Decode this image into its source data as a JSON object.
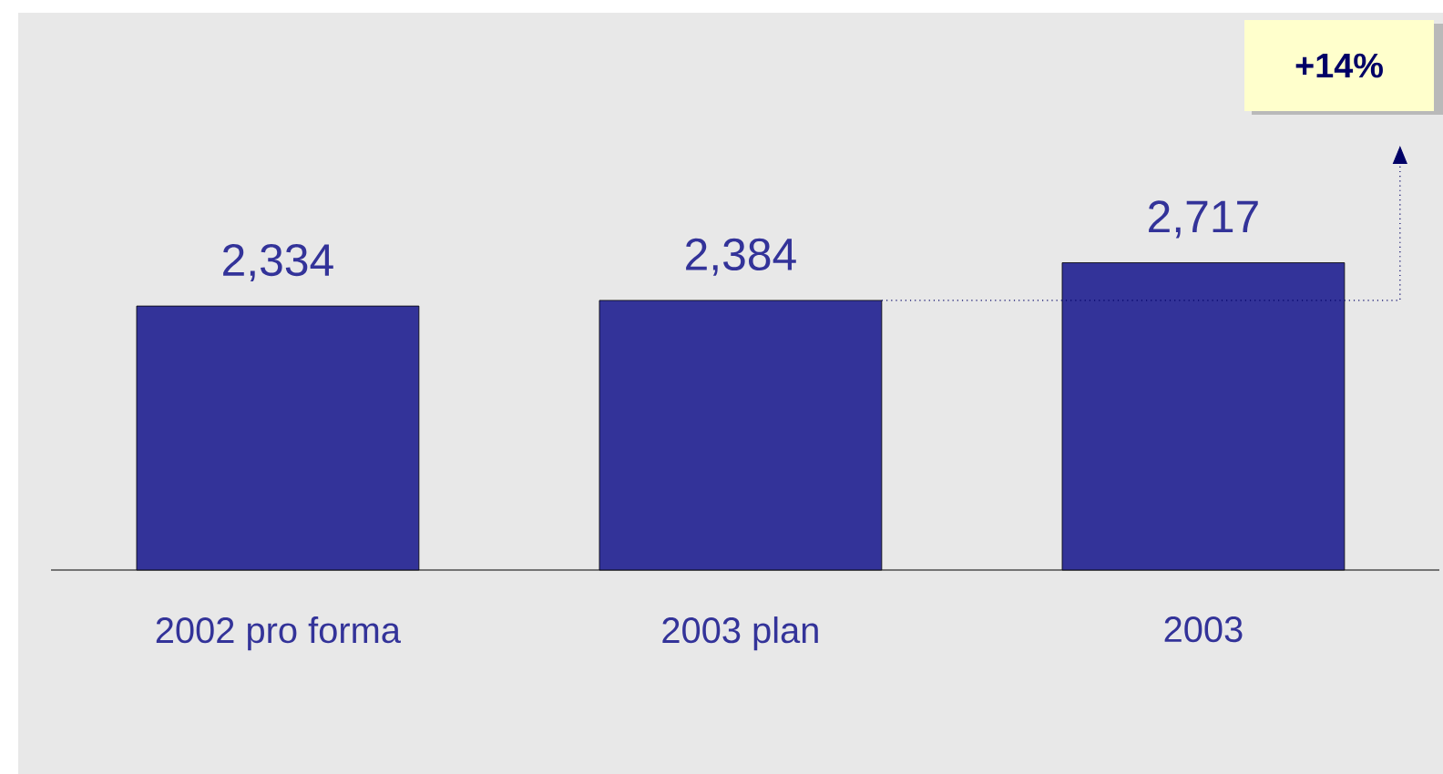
{
  "chart_data": {
    "type": "bar",
    "categories": [
      "2002 pro forma",
      "2003 plan",
      "2003"
    ],
    "values": [
      2334,
      2384,
      2717
    ],
    "color": "#333399",
    "value_labels": [
      "2,334",
      "2,384",
      "2,717"
    ],
    "annotations": [
      "+14%"
    ]
  }
}
